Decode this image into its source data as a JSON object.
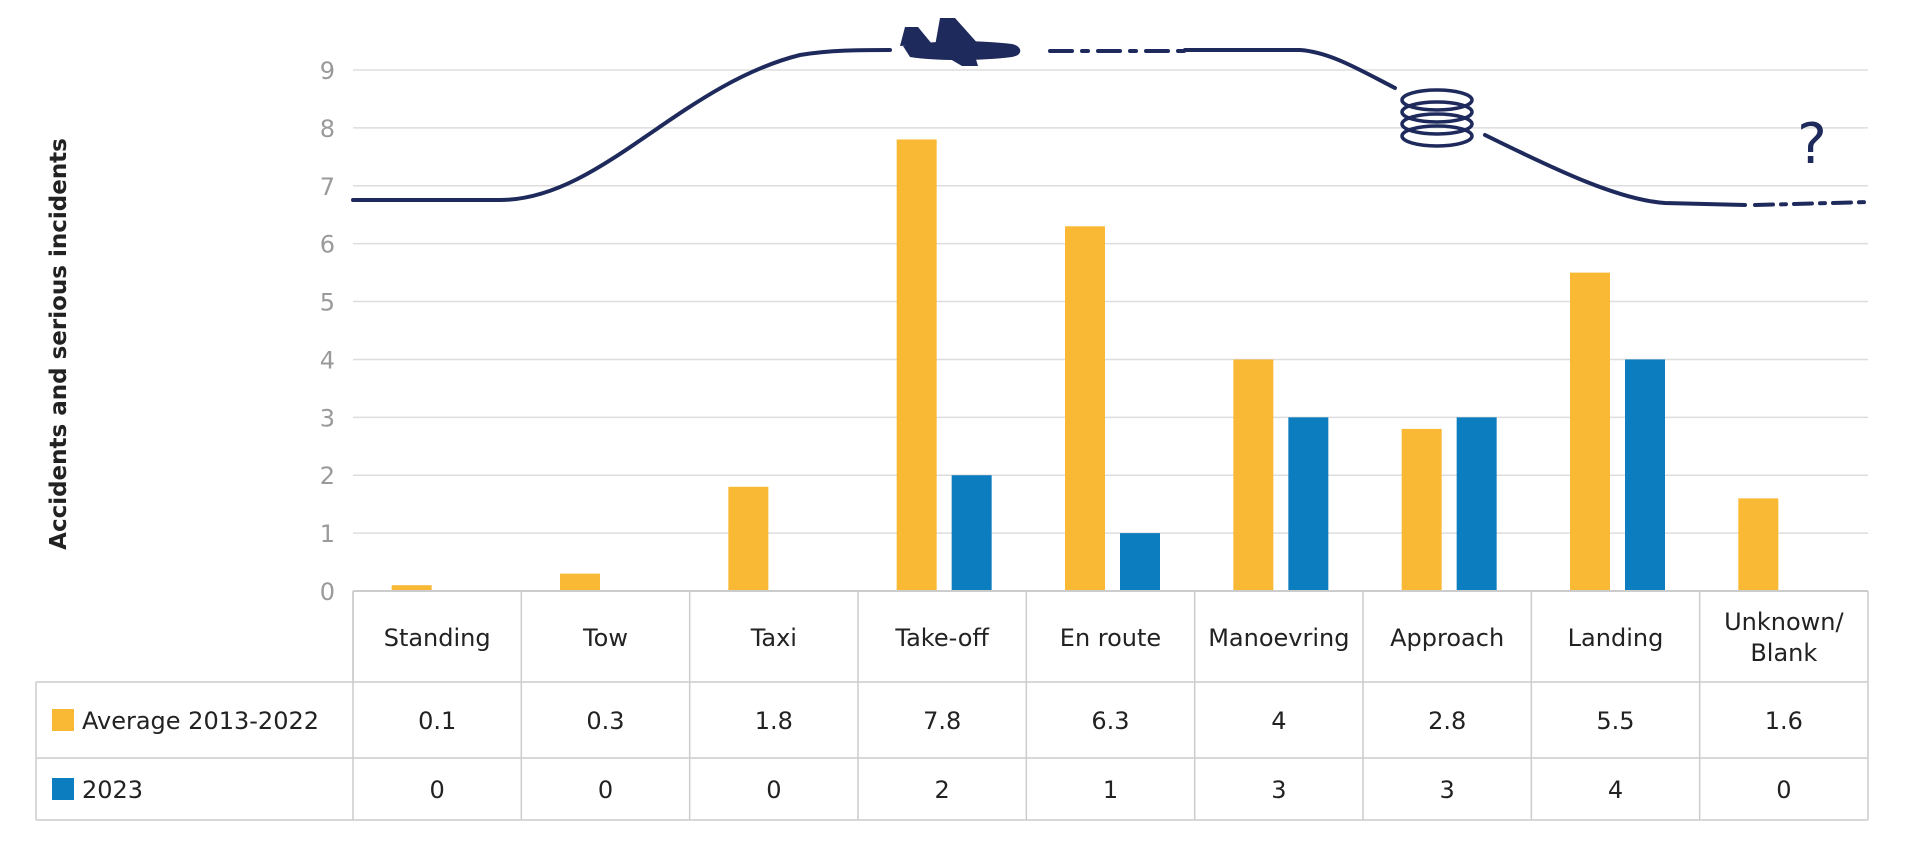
{
  "chart_data": {
    "type": "bar",
    "ylabel": "Accidents and serious incidents",
    "ylim": [
      0,
      9
    ],
    "yticks": [
      0,
      1,
      2,
      3,
      4,
      5,
      6,
      7,
      8,
      9
    ],
    "grid": true,
    "categories": [
      "Standing",
      "Tow",
      "Taxi",
      "Take-off",
      "En route",
      "Manoevring",
      "Approach",
      "Landing",
      "Unknown/\nBlank"
    ],
    "series": [
      {
        "name": "Average 2013-2022",
        "color": "#F9B934",
        "values": [
          0.1,
          0.3,
          1.8,
          7.8,
          6.3,
          4,
          2.8,
          5.5,
          1.6
        ]
      },
      {
        "name": "2023",
        "color": "#0C7DBE",
        "values": [
          0,
          0,
          0,
          2,
          1,
          3,
          3,
          4,
          0
        ]
      }
    ],
    "table": {
      "rows": [
        [
          "0.1",
          "0.3",
          "1.8",
          "7.8",
          "6.3",
          "4",
          "2.8",
          "5.5",
          "1.6"
        ],
        [
          "0",
          "0",
          "0",
          "2",
          "1",
          "3",
          "3",
          "4",
          "0"
        ]
      ]
    },
    "decorations": {
      "flight_profile_color": "#1F2A5C",
      "icons": [
        "airplane-icon",
        "holding-pattern-icon",
        "question-mark-icon"
      ],
      "question_mark": "?"
    }
  }
}
